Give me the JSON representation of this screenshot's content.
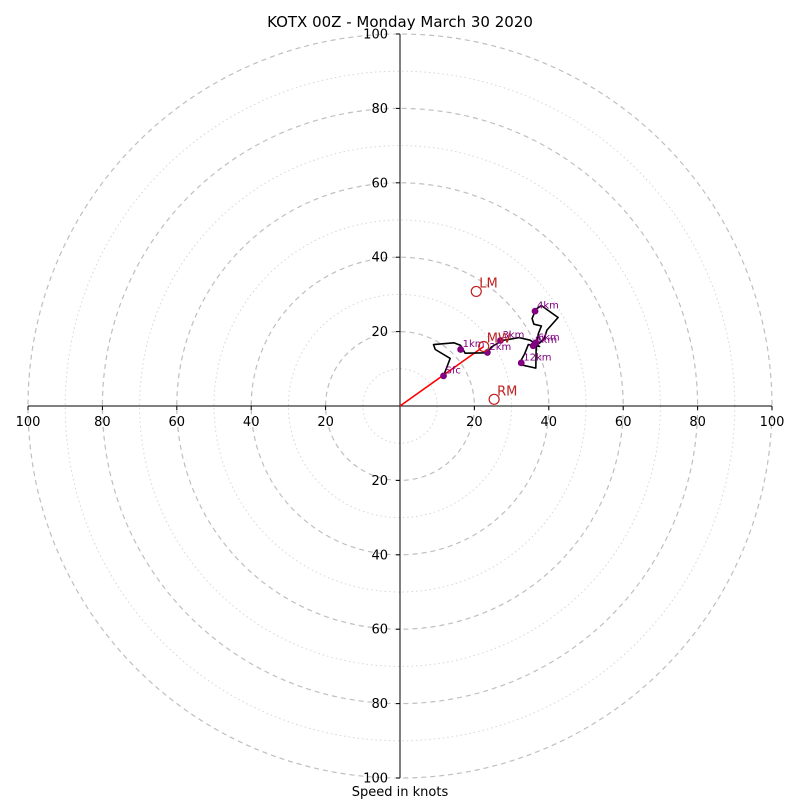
{
  "chart_data": {
    "type": "hodograph",
    "title": "KOTX 00Z - Monday March 30 2020",
    "xlabel": "Speed in knots",
    "range": 100,
    "major_rings": [
      20,
      40,
      60,
      80,
      100
    ],
    "minor_rings": [
      10,
      30,
      50,
      70,
      90
    ],
    "ticks": {
      "x": [
        {
          "value": -100,
          "label": "100"
        },
        {
          "value": -80,
          "label": "80"
        },
        {
          "value": -60,
          "label": "60"
        },
        {
          "value": -40,
          "label": "40"
        },
        {
          "value": -20,
          "label": "20"
        },
        {
          "value": 20,
          "label": "20"
        },
        {
          "value": 40,
          "label": "40"
        },
        {
          "value": 60,
          "label": "60"
        },
        {
          "value": 80,
          "label": "80"
        },
        {
          "value": 100,
          "label": "100"
        }
      ],
      "y": [
        {
          "value": 100,
          "label": "100"
        },
        {
          "value": 80,
          "label": "80"
        },
        {
          "value": 60,
          "label": "60"
        },
        {
          "value": 40,
          "label": "40"
        },
        {
          "value": 20,
          "label": "20"
        },
        {
          "value": -20,
          "label": "20"
        },
        {
          "value": -40,
          "label": "40"
        },
        {
          "value": -60,
          "label": "60"
        },
        {
          "value": -80,
          "label": "80"
        },
        {
          "value": -100,
          "label": "100"
        }
      ]
    },
    "trace": [
      [
        11.7,
        8.1
      ],
      [
        13.5,
        12.8
      ],
      [
        9.5,
        15.2
      ],
      [
        9.0,
        16.5
      ],
      [
        14.5,
        17.0
      ],
      [
        16.3,
        16.3
      ],
      [
        17.5,
        14.2
      ],
      [
        23.5,
        14.3
      ],
      [
        24.5,
        15.8
      ],
      [
        27.5,
        17.6
      ],
      [
        32.0,
        18.4
      ],
      [
        35.0,
        17.7
      ],
      [
        37.5,
        16.0
      ],
      [
        34.5,
        16.5
      ],
      [
        33.5,
        14.0
      ],
      [
        32.0,
        11.2
      ],
      [
        36.5,
        10.2
      ],
      [
        36.6,
        16.0
      ],
      [
        37.2,
        19.5
      ],
      [
        38.0,
        21.5
      ],
      [
        36.0,
        22.0
      ],
      [
        35.5,
        23.5
      ],
      [
        36.5,
        26.0
      ],
      [
        38.0,
        27.0
      ],
      [
        42.5,
        23.8
      ],
      [
        39.5,
        20.4
      ],
      [
        38.7,
        17.9
      ],
      [
        37.0,
        16.5
      ],
      [
        36.0,
        16.5
      ],
      [
        35.3,
        16.2
      ]
    ],
    "height_points": [
      {
        "label": "Sfc",
        "u": 11.7,
        "v": 8.1
      },
      {
        "label": "1km",
        "u": 16.3,
        "v": 15.2
      },
      {
        "label": "2km",
        "u": 23.5,
        "v": 14.4
      },
      {
        "label": "3km",
        "u": 27.0,
        "v": 17.6
      },
      {
        "label": "4km",
        "u": 36.3,
        "v": 25.5
      },
      {
        "label": "6km",
        "u": 36.5,
        "v": 17.0
      },
      {
        "label": "9km",
        "u": 35.8,
        "v": 16.2
      },
      {
        "label": "12km",
        "u": 32.6,
        "v": 11.6
      }
    ],
    "markers": [
      {
        "label": "LM",
        "u": 20.5,
        "v": 30.8,
        "color": "#c02020"
      },
      {
        "label": "MW",
        "u": 22.5,
        "v": 16.0,
        "color": "#c02020"
      },
      {
        "label": "RM",
        "u": 25.3,
        "v": 1.8,
        "color": "#c02020"
      }
    ],
    "shear_vector": {
      "u0": 0,
      "v0": 0,
      "u1": 22.5,
      "v1": 16.0,
      "color": "#ff0000"
    },
    "colors": {
      "trace": "#000000",
      "points": "#800080",
      "labels": "#800080"
    }
  }
}
